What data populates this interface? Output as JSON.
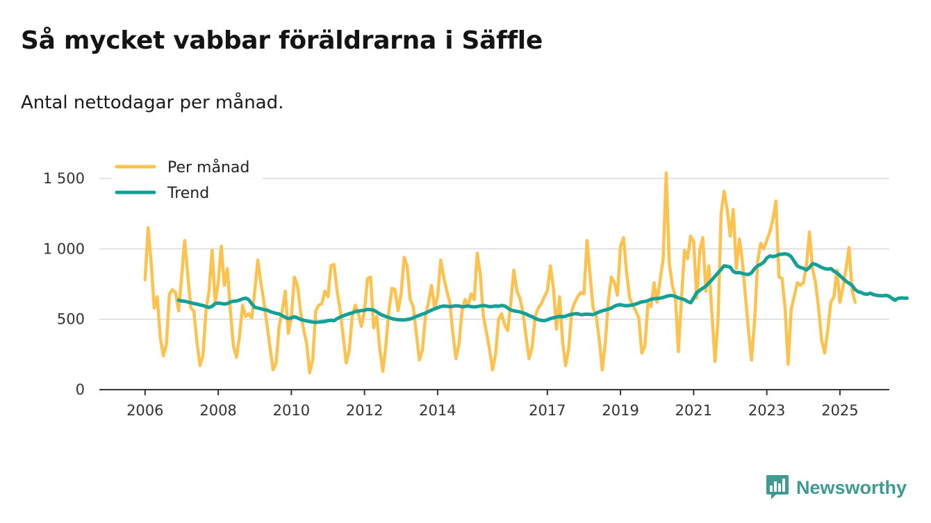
{
  "header": {
    "title": "Så mycket vabbar föräldrarna i Säffle",
    "subtitle": "Antal nettodagar per månad."
  },
  "brand": {
    "name": "Newsworthy",
    "color": "#3f9b91",
    "icon": "bar-chart-speech-bubble-icon"
  },
  "chart_data": {
    "type": "line",
    "title": "Så mycket vabbar föräldrarna i Säffle",
    "subtitle": "Antal nettodagar per månad.",
    "xlabel": "",
    "ylabel": "",
    "x_start": 2006.0,
    "x_step": 0.0833333,
    "xlim": [
      2004.75,
      2026.35
    ],
    "ylim": [
      0,
      1500
    ],
    "yticks": [
      0,
      500,
      1000,
      1500
    ],
    "ytick_labels": [
      "0",
      "500",
      "1 000",
      "1 500"
    ],
    "xticks": [
      2006,
      2008,
      2010,
      2012,
      2014,
      2017,
      2019,
      2021,
      2023,
      2025
    ],
    "xtick_labels": [
      "2006",
      "2008",
      "2010",
      "2012",
      "2014",
      "2017",
      "2019",
      "2021",
      "2023",
      "2025"
    ],
    "grid": "horizontal",
    "legend_position": "top-left",
    "series": [
      {
        "name": "Per månad",
        "color": "#fdc24e",
        "start_index": 0,
        "values": [
          780,
          1150,
          900,
          580,
          660,
          370,
          240,
          320,
          680,
          710,
          690,
          560,
          800,
          1060,
          820,
          580,
          560,
          340,
          170,
          240,
          560,
          700,
          990,
          620,
          760,
          1020,
          740,
          860,
          560,
          310,
          230,
          380,
          600,
          520,
          540,
          510,
          700,
          920,
          760,
          620,
          460,
          300,
          140,
          190,
          450,
          560,
          700,
          400,
          520,
          800,
          740,
          560,
          430,
          330,
          120,
          210,
          560,
          600,
          610,
          700,
          660,
          880,
          890,
          700,
          570,
          380,
          190,
          280,
          530,
          600,
          540,
          450,
          560,
          790,
          800,
          440,
          520,
          290,
          130,
          310,
          560,
          720,
          710,
          560,
          680,
          940,
          880,
          640,
          590,
          400,
          210,
          280,
          520,
          620,
          740,
          580,
          660,
          920,
          800,
          700,
          620,
          400,
          220,
          320,
          560,
          640,
          600,
          680,
          640,
          970,
          820,
          520,
          410,
          290,
          140,
          250,
          500,
          540,
          460,
          420,
          620,
          850,
          700,
          650,
          550,
          380,
          220,
          300,
          520,
          580,
          610,
          660,
          700,
          880,
          720,
          430,
          660,
          340,
          170,
          290,
          560,
          620,
          660,
          690,
          680,
          1060,
          820,
          580,
          530,
          360,
          140,
          330,
          630,
          800,
          760,
          670,
          1020,
          1080,
          830,
          650,
          600,
          560,
          510,
          260,
          310,
          610,
          590,
          760,
          620,
          780,
          930,
          1540,
          900,
          740,
          660,
          270,
          640,
          990,
          930,
          1090,
          1050,
          650,
          990,
          1080,
          700,
          880,
          540,
          200,
          500,
          1250,
          1410,
          1280,
          1090,
          1280,
          860,
          1070,
          910,
          660,
          420,
          210,
          490,
          910,
          1040,
          1000,
          1060,
          1120,
          1210,
          1340,
          800,
          790,
          580,
          180,
          570,
          660,
          760,
          740,
          760,
          880,
          1120,
          860,
          760,
          580,
          350,
          260,
          420,
          620,
          660,
          850,
          620,
          730,
          860,
          1010,
          700,
          620
        ]
      },
      {
        "name": "Trend",
        "color": "#15a096",
        "start_index": 11,
        "values": [
          635,
          630,
          628,
          622,
          618,
          612,
          608,
          602,
          598,
          590,
          584,
          592,
          612,
          615,
          612,
          608,
          612,
          622,
          628,
          630,
          636,
          645,
          650,
          640,
          610,
          585,
          580,
          575,
          568,
          566,
          555,
          548,
          542,
          538,
          526,
          514,
          505,
          510,
          518,
          510,
          500,
          493,
          488,
          484,
          480,
          478,
          480,
          482,
          484,
          490,
          493,
          490,
          505,
          515,
          525,
          532,
          540,
          545,
          555,
          558,
          562,
          564,
          570,
          568,
          565,
          552,
          538,
          528,
          520,
          512,
          505,
          500,
          497,
          496,
          495,
          499,
          502,
          510,
          520,
          528,
          536,
          544,
          554,
          565,
          574,
          582,
          590,
          594,
          592,
          590,
          592,
          596,
          594,
          589,
          591,
          594,
          590,
          587,
          590,
          594,
          598,
          594,
          590,
          591,
          594,
          592,
          598,
          594,
          580,
          566,
          560,
          556,
          552,
          545,
          538,
          526,
          518,
          506,
          498,
          492,
          490,
          496,
          505,
          510,
          515,
          520,
          518,
          522,
          530,
          535,
          539,
          540,
          532,
          535,
          537,
          535,
          533,
          543,
          552,
          560,
          566,
          572,
          580,
          592,
          601,
          604,
          598,
          596,
          598,
          602,
          608,
          616,
          624,
          626,
          632,
          642,
          646,
          648,
          650,
          655,
          662,
          668,
          668,
          662,
          652,
          646,
          640,
          626,
          618,
          650,
          690,
          705,
          720,
          735,
          758,
          780,
          805,
          830,
          855,
          880,
          876,
          870,
          840,
          830,
          832,
          825,
          820,
          818,
          830,
          860,
          880,
          890,
          905,
          935,
          950,
          945,
          950,
          960,
          962,
          965,
          960,
          945,
          912,
          880,
          868,
          862,
          850,
          868,
          895,
          890,
          880,
          868,
          860,
          856,
          860,
          842,
          830,
          810,
          790,
          770,
          756,
          740,
          710,
          695,
          690,
          680,
          678,
          685,
          675,
          670,
          668,
          666,
          670,
          665,
          650,
          635,
          648,
          652,
          650,
          650
        ]
      }
    ]
  }
}
